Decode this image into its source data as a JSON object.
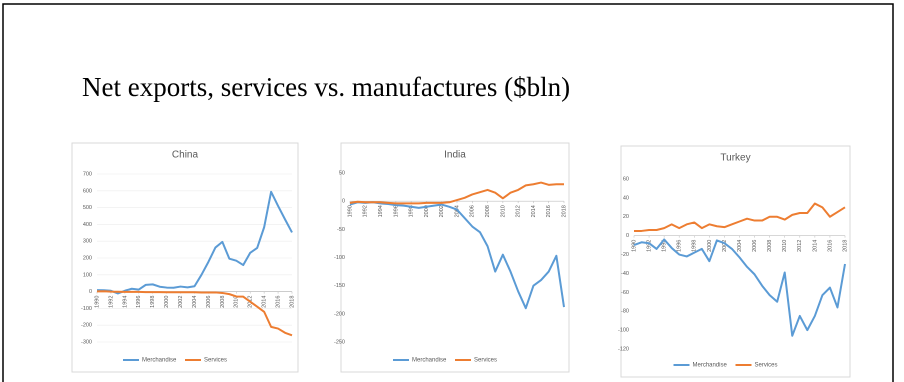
{
  "slide_title": "Net exports, services vs. manufactures ($bln)",
  "chart_data": [
    {
      "type": "line",
      "title": "China",
      "x": [
        1990,
        1991,
        1992,
        1993,
        1994,
        1995,
        1996,
        1997,
        1998,
        1999,
        2000,
        2001,
        2002,
        2003,
        2004,
        2005,
        2006,
        2007,
        2008,
        2009,
        2010,
        2011,
        2012,
        2013,
        2014,
        2015,
        2016,
        2017,
        2018
      ],
      "xlim": [
        1990,
        2018
      ],
      "xticks": [
        1990,
        1992,
        1994,
        1996,
        1998,
        2000,
        2002,
        2004,
        2006,
        2008,
        2010,
        2012,
        2014,
        2016,
        2018
      ],
      "ylim": [
        -300,
        700
      ],
      "yticks": [
        -300,
        -200,
        -100,
        0,
        100,
        200,
        300,
        400,
        500,
        600,
        700
      ],
      "grid": true,
      "legend": "bottom",
      "series": [
        {
          "name": "Merchandise",
          "color": "#5b9bd5",
          "values": [
            9,
            8,
            5,
            -11,
            5,
            17,
            12,
            40,
            43,
            29,
            24,
            23,
            30,
            25,
            32,
            100,
            177,
            262,
            296,
            196,
            184,
            158,
            231,
            260,
            383,
            594,
            510,
            430,
            352
          ]
        },
        {
          "name": "Services",
          "color": "#ed7d31",
          "values": [
            1,
            2,
            0,
            -1,
            -2,
            -2,
            -2,
            -3,
            -3,
            -3,
            -4,
            -4,
            -4,
            -4,
            -4,
            -5,
            -5,
            -5,
            -8,
            -15,
            -29,
            -30,
            -60,
            -90,
            -120,
            -210,
            -220,
            -245,
            -260
          ]
        }
      ]
    },
    {
      "type": "line",
      "title": "India",
      "x": [
        1990,
        1991,
        1992,
        1993,
        1994,
        1995,
        1996,
        1997,
        1998,
        1999,
        2000,
        2001,
        2002,
        2003,
        2004,
        2005,
        2006,
        2007,
        2008,
        2009,
        2010,
        2011,
        2012,
        2013,
        2014,
        2015,
        2016,
        2017,
        2018
      ],
      "xlim": [
        1990,
        2018
      ],
      "xticks": [
        1990,
        1992,
        1994,
        1996,
        1998,
        2000,
        2002,
        2004,
        2006,
        2008,
        2010,
        2012,
        2014,
        2016,
        2018
      ],
      "ylim": [
        -250,
        50
      ],
      "yticks": [
        -250,
        -200,
        -150,
        -100,
        -50,
        0,
        50
      ],
      "grid": false,
      "legend": "bottom",
      "series": [
        {
          "name": "Merchandise",
          "color": "#5b9bd5",
          "values": [
            -6,
            -2,
            -3,
            -2,
            -4,
            -5,
            -7,
            -8,
            -10,
            -12,
            -10,
            -8,
            -6,
            -10,
            -15,
            -30,
            -45,
            -55,
            -80,
            -125,
            -95,
            -125,
            -160,
            -190,
            -150,
            -140,
            -125,
            -97,
            -188
          ]
        },
        {
          "name": "Services",
          "color": "#ed7d31",
          "values": [
            -3,
            -1,
            -2,
            -2,
            -2,
            -3,
            -4,
            -4,
            -4,
            -4,
            -3,
            -3,
            -3,
            -2,
            2,
            6,
            12,
            16,
            20,
            15,
            5,
            15,
            20,
            28,
            30,
            33,
            29,
            30,
            30
          ]
        }
      ]
    },
    {
      "type": "line",
      "title": "Turkey",
      "x": [
        1990,
        1991,
        1992,
        1993,
        1994,
        1995,
        1996,
        1997,
        1998,
        1999,
        2000,
        2001,
        2002,
        2003,
        2004,
        2005,
        2006,
        2007,
        2008,
        2009,
        2010,
        2011,
        2012,
        2013,
        2014,
        2015,
        2016,
        2017,
        2018
      ],
      "xlim": [
        1990,
        2018
      ],
      "xticks": [
        1990,
        1992,
        1994,
        1996,
        1998,
        2000,
        2002,
        2004,
        2006,
        2008,
        2010,
        2012,
        2014,
        2016,
        2018
      ],
      "ylim": [
        -120,
        60
      ],
      "yticks": [
        -120,
        -100,
        -80,
        -60,
        -40,
        -20,
        0,
        20,
        40,
        60
      ],
      "grid": false,
      "legend": "bottom",
      "series": [
        {
          "name": "Merchandise",
          "color": "#5b9bd5",
          "values": [
            -10,
            -7,
            -8,
            -14,
            -4,
            -13,
            -20,
            -22,
            -18,
            -14,
            -27,
            -5,
            -8,
            -14,
            -23,
            -33,
            -41,
            -53,
            -63,
            -70,
            -39,
            -106,
            -85,
            -100,
            -85,
            -63,
            -55,
            -76,
            -30
          ]
        },
        {
          "name": "Services",
          "color": "#ed7d31",
          "values": [
            5,
            5,
            6,
            6,
            8,
            12,
            8,
            12,
            14,
            8,
            12,
            10,
            9,
            12,
            15,
            18,
            16,
            16,
            20,
            20,
            17,
            22,
            24,
            24,
            34,
            30,
            20,
            25,
            30
          ]
        }
      ]
    }
  ]
}
